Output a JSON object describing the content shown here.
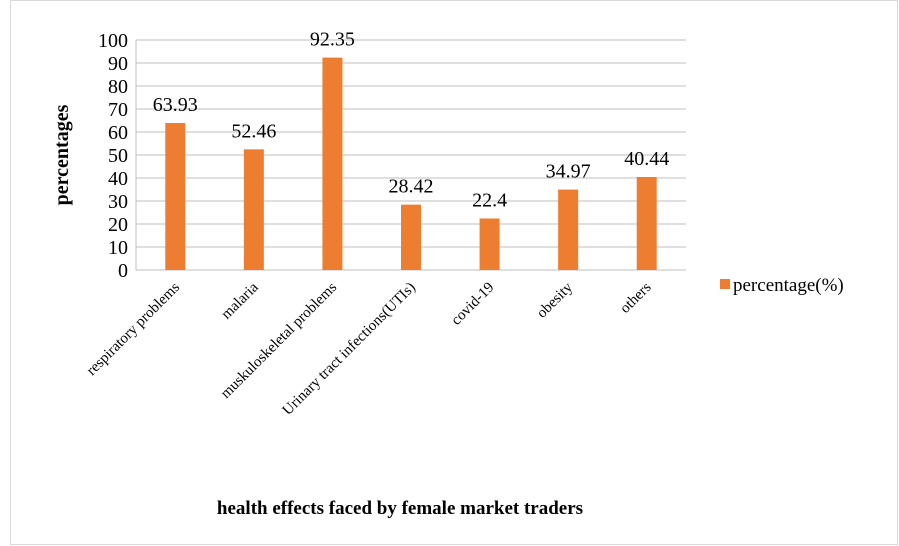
{
  "chart_data": {
    "type": "bar",
    "title": "health effects faced by female market traders",
    "y_label": "percentages",
    "categories": [
      "respiratory problems",
      "malaria",
      "muskuloskeletal problems",
      "Urinary tract infections(UTIs)",
      "covid-19",
      "obesity",
      "others"
    ],
    "series": [
      {
        "name": "percentage(%)",
        "color": "#ed7d31",
        "values": [
          63.93,
          52.46,
          92.35,
          28.42,
          22.4,
          34.97,
          40.44
        ]
      }
    ],
    "ylim": [
      0,
      100
    ],
    "yticks": [
      0,
      10,
      20,
      30,
      40,
      50,
      60,
      70,
      80,
      90,
      100
    ],
    "grid": true,
    "legend": "right"
  }
}
